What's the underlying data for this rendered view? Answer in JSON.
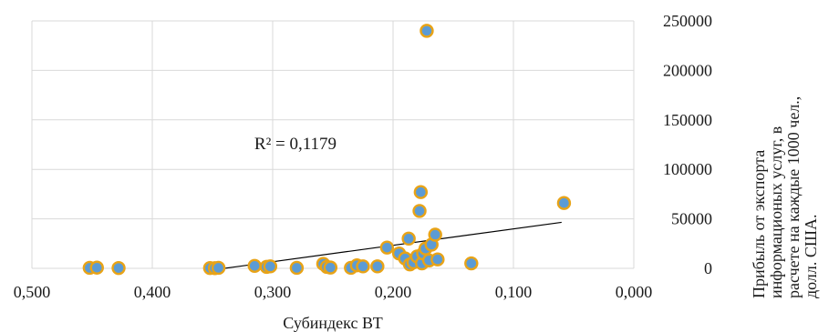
{
  "chart_data": {
    "type": "scatter",
    "title": "",
    "xlabel": "Субиндекс ВТ",
    "ylabel_lines": [
      "Прибыль от экспорта",
      "информационых услуг, в",
      "расчете на  каждые 1000 чел.,",
      "долл. США."
    ],
    "x_axis_reversed": true,
    "xlim": [
      0.0,
      0.5
    ],
    "ylim": [
      0,
      250000
    ],
    "x_ticks": [
      0.5,
      0.4,
      0.3,
      0.2,
      0.1,
      0.0
    ],
    "x_tick_labels": [
      "0,500",
      "0,400",
      "0,300",
      "0,200",
      "0,100",
      "0,000"
    ],
    "y_ticks": [
      0,
      50000,
      100000,
      150000,
      200000,
      250000
    ],
    "y_tick_labels": [
      "0",
      "50000",
      "100000",
      "150000",
      "200000",
      "250000"
    ],
    "y_axis_side": "right",
    "grid": true,
    "legend": "none",
    "marker_fill": "#5b9bd5",
    "marker_edge": "#e8a317",
    "trendline": {
      "type": "linear",
      "x": [
        0.34,
        0.06
      ],
      "y": [
        0,
        46500
      ],
      "r2_label": "R² = 0,1179",
      "color": "#000000"
    },
    "points": [
      {
        "x": 0.452,
        "y": 500
      },
      {
        "x": 0.446,
        "y": 700
      },
      {
        "x": 0.428,
        "y": 300
      },
      {
        "x": 0.352,
        "y": 300
      },
      {
        "x": 0.348,
        "y": 200
      },
      {
        "x": 0.345,
        "y": 500
      },
      {
        "x": 0.315,
        "y": 2500
      },
      {
        "x": 0.305,
        "y": 1500
      },
      {
        "x": 0.302,
        "y": 2000
      },
      {
        "x": 0.28,
        "y": 500
      },
      {
        "x": 0.258,
        "y": 4500
      },
      {
        "x": 0.255,
        "y": 1500
      },
      {
        "x": 0.252,
        "y": 800
      },
      {
        "x": 0.235,
        "y": 500
      },
      {
        "x": 0.23,
        "y": 3000
      },
      {
        "x": 0.225,
        "y": 2000
      },
      {
        "x": 0.213,
        "y": 2000
      },
      {
        "x": 0.205,
        "y": 21000
      },
      {
        "x": 0.195,
        "y": 15000
      },
      {
        "x": 0.19,
        "y": 10000
      },
      {
        "x": 0.187,
        "y": 30000
      },
      {
        "x": 0.186,
        "y": 4000
      },
      {
        "x": 0.183,
        "y": 6000
      },
      {
        "x": 0.18,
        "y": 12000
      },
      {
        "x": 0.178,
        "y": 58000
      },
      {
        "x": 0.177,
        "y": 77000
      },
      {
        "x": 0.176,
        "y": 5000
      },
      {
        "x": 0.175,
        "y": 15000
      },
      {
        "x": 0.173,
        "y": 20000
      },
      {
        "x": 0.172,
        "y": 240000
      },
      {
        "x": 0.17,
        "y": 8000
      },
      {
        "x": 0.168,
        "y": 24000
      },
      {
        "x": 0.165,
        "y": 34000
      },
      {
        "x": 0.163,
        "y": 9000
      },
      {
        "x": 0.135,
        "y": 5000
      },
      {
        "x": 0.058,
        "y": 66000
      }
    ]
  }
}
